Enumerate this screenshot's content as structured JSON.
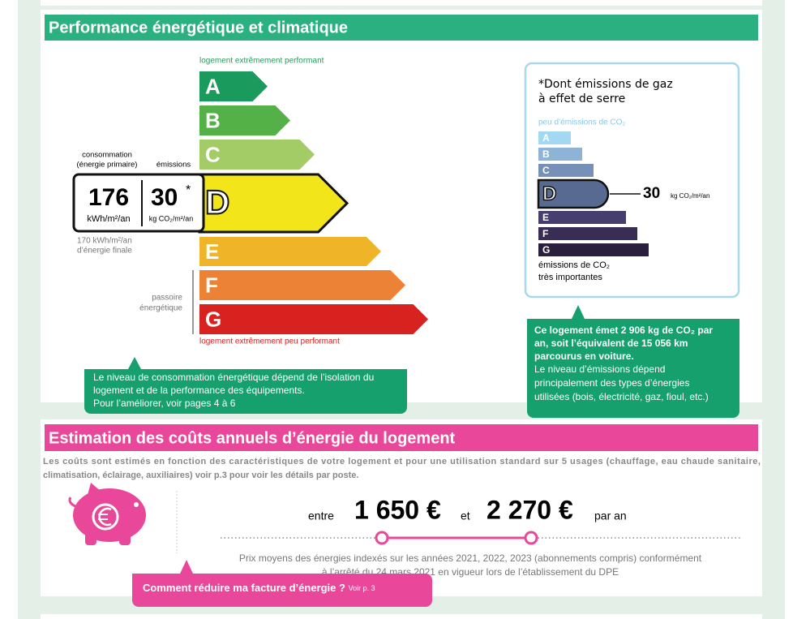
{
  "energy": {
    "title": "Performance énergétique et climatique",
    "top_label": "logement extrêmement performant",
    "bottom_label": "logement extrêmement peu performant",
    "classes": [
      "A",
      "B",
      "C",
      "D",
      "E",
      "F",
      "G"
    ],
    "consumption_label": [
      "consommation",
      "(énergie primaire)"
    ],
    "emissions_label": "émissions",
    "consumption_value": "176",
    "consumption_unit": "kWh/m²/an",
    "emissions_value": "30",
    "emissions_star": "*",
    "emissions_unit": "kg CO₂/m²/an",
    "final_energy": [
      "170 kWh/m²/an",
      "d’énergie finale"
    ],
    "passoire": [
      "passoire",
      "énergétique"
    ],
    "tooltip": [
      "Le niveau de consommation énergétique dépend de l’isolation du",
      "logement et de la performance des équipements.",
      "Pour l’améliorer, voir pages 4 à 6"
    ]
  },
  "ghg": {
    "heading": [
      "*Dont émissions de gaz",
      "à effet de serre"
    ],
    "top_label": "peu d’émissions de CO₂",
    "classes": [
      "A",
      "B",
      "C",
      "D",
      "E",
      "F",
      "G"
    ],
    "value": "30",
    "unit": "kg CO₂/m²/an",
    "bottom_label": [
      "émissions de CO₂",
      "très importantes"
    ],
    "tooltip_bold": [
      "Ce logement émet 2 906 kg de CO₂ par",
      "an, soit l’équivalent de 15 056 km",
      "parcourus en voiture."
    ],
    "tooltip": [
      "Le niveau d’émissions dépend",
      "principalement des types d’énergies",
      "utilisées (bois, électricité, gaz, fioul, etc.)"
    ]
  },
  "costs": {
    "title": "Estimation des coûts annuels d’énergie du logement",
    "intro": [
      "Les coûts sont estimés en fonction des caractéristiques de votre logement et pour une utilisation standard sur 5 usages (chauffage, eau chaude sanitaire,",
      "climatisation, éclairage, auxiliaires) voir p.3 pour voir les détails par poste."
    ],
    "between": "entre",
    "low": "1 650 €",
    "and": "et",
    "high": "2 270 €",
    "per_year": "par an",
    "note": [
      "Prix moyens des énergies indexés sur les années 2021, 2022, 2023 (abonnements compris) conformément",
      "à l’arrêté du 24 mars 2021 en vigueur lors de l’établissement du DPE"
    ],
    "button": "Comment réduire ma facture d’énergie ?",
    "button_ref": "Voir p. 3"
  }
}
